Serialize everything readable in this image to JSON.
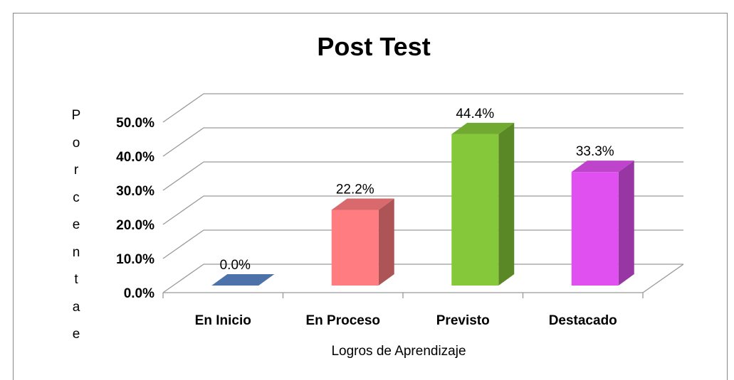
{
  "chart_data": {
    "type": "bar3d",
    "title": "Post Test",
    "categories": [
      "En Inicio",
      "En Proceso",
      "Previsto",
      "Destacado"
    ],
    "values": [
      0,
      22.2,
      44.4,
      33.3
    ],
    "value_labels": [
      "0.0%",
      "22.2%",
      "44.4%",
      "33.3%"
    ],
    "colors": [
      "#5b87c8",
      "#ff7c80",
      "#85c839",
      "#e050f0"
    ],
    "ylim": [
      0,
      50
    ],
    "yticks": [
      {
        "value": 0,
        "label": "0.0%"
      },
      {
        "value": 10,
        "label": "10.0%"
      },
      {
        "value": 20,
        "label": "20.0%"
      },
      {
        "value": 30,
        "label": "30.0%"
      },
      {
        "value": 40,
        "label": "40.0%"
      },
      {
        "value": 50,
        "label": "50.0%"
      }
    ],
    "x_label": "Logros de Aprendizaje",
    "y_label": "Porcentae",
    "grid": true
  }
}
